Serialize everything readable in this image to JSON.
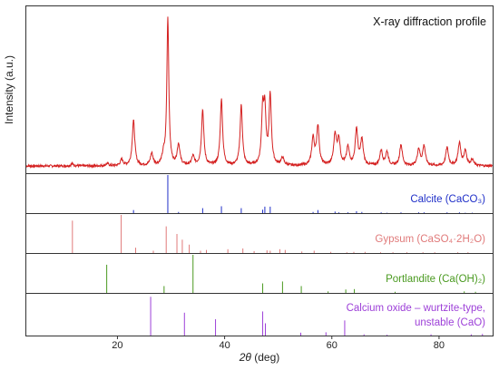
{
  "chart_data": {
    "type": "line",
    "title": "X-ray diffraction profile",
    "xlabel_italic": "2θ",
    "xlabel_unit": " (deg)",
    "ylabel": "Intensity (a.u.)",
    "xlim": [
      3,
      90
    ],
    "ylim": [
      0,
      100
    ],
    "xticks": [
      20,
      40,
      60,
      80
    ],
    "pattern": {
      "color": "#d42020",
      "baseline": 3,
      "peaks": [
        [
          11.6,
          1.5,
          0.3
        ],
        [
          18.1,
          1.5,
          0.3
        ],
        [
          20.8,
          4,
          0.3
        ],
        [
          23.0,
          30,
          0.28
        ],
        [
          26.4,
          8,
          0.3
        ],
        [
          28.6,
          6,
          0.3
        ],
        [
          29.4,
          98,
          0.22
        ],
        [
          31.4,
          14,
          0.3
        ],
        [
          34.1,
          6,
          0.3
        ],
        [
          35.9,
          37,
          0.26
        ],
        [
          39.4,
          44,
          0.26
        ],
        [
          43.1,
          40,
          0.26
        ],
        [
          47.1,
          35,
          0.25
        ],
        [
          47.5,
          33,
          0.25
        ],
        [
          48.5,
          46,
          0.26
        ],
        [
          50.8,
          5,
          0.3
        ],
        [
          56.5,
          18,
          0.3
        ],
        [
          57.4,
          26,
          0.28
        ],
        [
          60.6,
          20,
          0.3
        ],
        [
          61.3,
          17,
          0.3
        ],
        [
          63.0,
          12,
          0.3
        ],
        [
          64.6,
          24,
          0.28
        ],
        [
          65.6,
          17,
          0.3
        ],
        [
          69.2,
          10,
          0.3
        ],
        [
          70.3,
          9,
          0.3
        ],
        [
          72.9,
          14,
          0.3
        ],
        [
          76.2,
          11,
          0.3
        ],
        [
          77.2,
          13,
          0.3
        ],
        [
          81.5,
          12,
          0.3
        ],
        [
          83.8,
          15,
          0.3
        ],
        [
          84.9,
          10,
          0.3
        ],
        [
          86.2,
          4,
          0.3
        ]
      ]
    },
    "panels": [
      {
        "name": "Calcite (CaCO₃)",
        "color": "#1f2fc8",
        "sticks": [
          [
            23.0,
            8
          ],
          [
            29.4,
            100
          ],
          [
            31.4,
            3
          ],
          [
            35.9,
            13
          ],
          [
            39.4,
            18
          ],
          [
            43.1,
            13
          ],
          [
            47.1,
            9
          ],
          [
            47.5,
            17
          ],
          [
            48.5,
            17
          ],
          [
            56.5,
            3
          ],
          [
            57.4,
            8
          ],
          [
            60.6,
            4
          ],
          [
            61.3,
            2
          ],
          [
            63.0,
            2
          ],
          [
            64.6,
            5
          ],
          [
            65.6,
            3
          ],
          [
            69.2,
            2
          ],
          [
            70.3,
            1
          ],
          [
            72.9,
            2
          ],
          [
            76.2,
            2
          ],
          [
            77.2,
            2
          ],
          [
            81.5,
            2
          ],
          [
            83.8,
            2
          ],
          [
            84.9,
            1
          ],
          [
            86.2,
            1
          ]
        ]
      },
      {
        "name": "Gypsum (CaSO₄·2H₂O)",
        "color": "#e07a7a",
        "sticks": [
          [
            11.6,
            85
          ],
          [
            20.7,
            100
          ],
          [
            23.4,
            14
          ],
          [
            26.7,
            6
          ],
          [
            29.1,
            70
          ],
          [
            31.1,
            50
          ],
          [
            32.1,
            35
          ],
          [
            33.4,
            22
          ],
          [
            35.5,
            6
          ],
          [
            36.6,
            8
          ],
          [
            40.6,
            10
          ],
          [
            43.4,
            12
          ],
          [
            45.5,
            5
          ],
          [
            47.9,
            7
          ],
          [
            48.5,
            6
          ],
          [
            50.3,
            10
          ],
          [
            51.3,
            8
          ],
          [
            54.4,
            4
          ],
          [
            56.7,
            6
          ],
          [
            59.8,
            3
          ],
          [
            62.8,
            2
          ],
          [
            64.1,
            3
          ],
          [
            66.2,
            3
          ],
          [
            69.1,
            2
          ],
          [
            71.4,
            2
          ],
          [
            74.0,
            2
          ],
          [
            77.0,
            2
          ],
          [
            79.2,
            2
          ],
          [
            83.5,
            2
          ],
          [
            85.4,
            2
          ]
        ]
      },
      {
        "name": "Portlandite (Ca(OH)₂)",
        "color": "#4a9a20",
        "sticks": [
          [
            18.0,
            74
          ],
          [
            28.7,
            18
          ],
          [
            34.1,
            100
          ],
          [
            47.1,
            25
          ],
          [
            50.8,
            30
          ],
          [
            54.3,
            18
          ],
          [
            59.3,
            4
          ],
          [
            62.6,
            9
          ],
          [
            64.2,
            10
          ],
          [
            71.8,
            3
          ],
          [
            84.7,
            4
          ],
          [
            86.8,
            3
          ]
        ]
      },
      {
        "name": "Calcium oxide – wurtzite-type,",
        "name2": "unstable (CaO)",
        "color": "#9d40d8",
        "sticks": [
          [
            26.2,
            95
          ],
          [
            32.5,
            56
          ],
          [
            38.3,
            40
          ],
          [
            47.1,
            59
          ],
          [
            47.6,
            30
          ],
          [
            54.2,
            7
          ],
          [
            58.9,
            8
          ],
          [
            62.4,
            37
          ],
          [
            66.0,
            3
          ],
          [
            70.3,
            2
          ],
          [
            78.5,
            3
          ],
          [
            86.0,
            3
          ],
          [
            88.1,
            4
          ]
        ]
      }
    ]
  }
}
